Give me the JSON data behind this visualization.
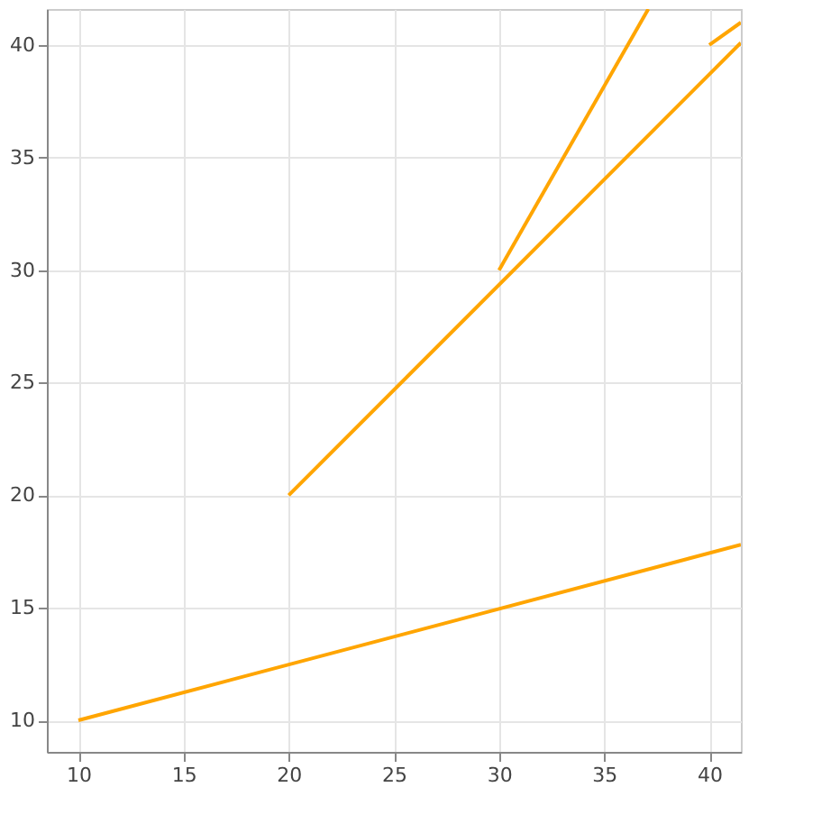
{
  "chart_data": {
    "type": "line",
    "xlim": [
      8.5,
      41.5
    ],
    "ylim": [
      8.6,
      41.6
    ],
    "xticks": [
      10,
      15,
      20,
      25,
      30,
      35,
      40
    ],
    "yticks": [
      10,
      15,
      20,
      25,
      30,
      35,
      40
    ],
    "grid": true,
    "line_style": "solid",
    "marker": "none",
    "series": [
      {
        "color": "#ffa500",
        "x": [
          10,
          41.5
        ],
        "values": [
          10,
          17.8
        ]
      },
      {
        "color": "#ffa500",
        "x": [
          20,
          41.5
        ],
        "values": [
          20,
          40.1
        ]
      },
      {
        "color": "#ffa500",
        "x": [
          30,
          37.1
        ],
        "values": [
          30,
          41.6
        ]
      },
      {
        "color": "#ffa500",
        "x": [
          40,
          41.5
        ],
        "values": [
          40,
          41.0
        ]
      }
    ]
  }
}
